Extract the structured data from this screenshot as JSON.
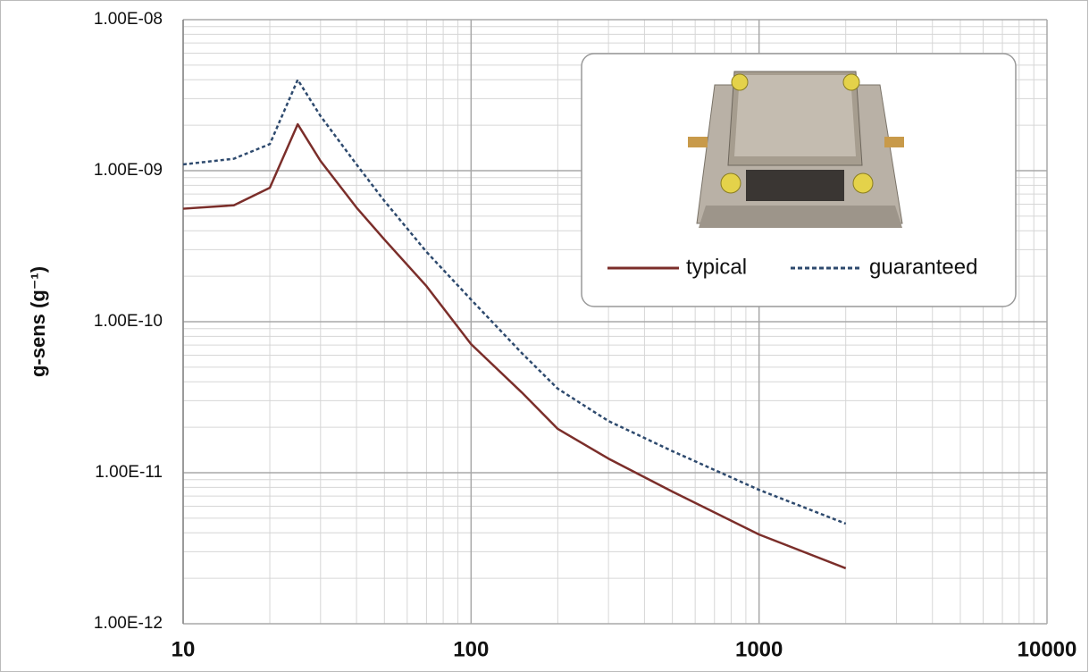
{
  "chart_data": {
    "type": "line",
    "y_label": "g-sens (g⁻¹)",
    "log_x": true,
    "log_y": true,
    "grid": true,
    "minor_grid": true,
    "legend": "upper right",
    "x": [
      10,
      15,
      20,
      25,
      30,
      40,
      50,
      70,
      100,
      150,
      200,
      300,
      500,
      1000,
      2000
    ],
    "series": [
      {
        "name": "typical",
        "color": "#7b2e2a",
        "dash": false,
        "values": [
          5.6e-10,
          5.9e-10,
          7.7e-10,
          2.03e-09,
          1.16e-09,
          5.7e-10,
          3.5e-10,
          1.72e-10,
          7.1e-11,
          3.4e-11,
          1.95e-11,
          1.24e-11,
          7.5e-12,
          3.9e-12,
          2.33e-12
        ]
      },
      {
        "name": "guaranteed",
        "color": "#2e4a6e",
        "dash": true,
        "values": [
          1.1e-09,
          1.2e-09,
          1.5e-09,
          4e-09,
          2.3e-09,
          1.1e-09,
          6.3e-10,
          2.9e-10,
          1.4e-10,
          6.2e-11,
          3.6e-11,
          2.2e-11,
          1.39e-11,
          7.7e-12,
          4.6e-12
        ]
      }
    ],
    "xlim": [
      10,
      10000
    ],
    "xticks": [
      10,
      100,
      1000,
      10000
    ],
    "ylim": [
      1e-12,
      1e-08
    ],
    "yticks": [
      {
        "value": 1e-12,
        "label": "1.00E-12"
      },
      {
        "value": 1e-11,
        "label": "1.00E-11"
      },
      {
        "value": 1e-10,
        "label": "1.00E-10"
      },
      {
        "value": 1e-09,
        "label": "1.00E-09"
      },
      {
        "value": 1e-08,
        "label": "1.00E-08"
      }
    ]
  }
}
